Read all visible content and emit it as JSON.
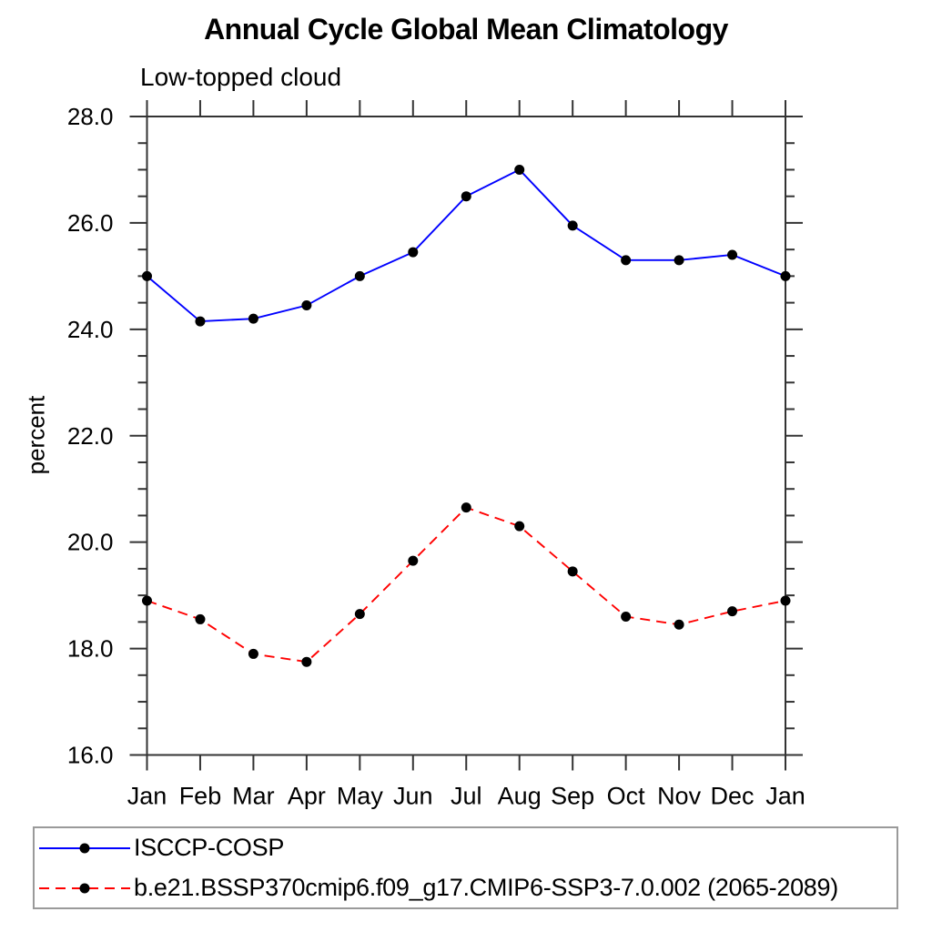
{
  "chart_data": {
    "type": "line",
    "title": "Annual Cycle Global Mean Climatology",
    "subtitle": "Low-topped cloud",
    "ylabel": "percent",
    "x_tick_labels": [
      "Jan",
      "Feb",
      "Mar",
      "Apr",
      "May",
      "Jun",
      "Jul",
      "Aug",
      "Sep",
      "Oct",
      "Nov",
      "Dec",
      "Jan"
    ],
    "ylim": [
      16.0,
      28.0
    ],
    "y_major_ticks": [
      16.0,
      18.0,
      20.0,
      22.0,
      24.0,
      26.0,
      28.0
    ],
    "y_tick_labels": [
      "16.0",
      "18.0",
      "20.0",
      "22.0",
      "24.0",
      "26.0",
      "28.0"
    ],
    "y_minor_step": 0.5,
    "grid": false,
    "legend_position": "bottom-left",
    "axis_color": "#333333",
    "marker": "filled-circle",
    "marker_color": "#000000",
    "series": [
      {
        "name": "ISCCP-COSP",
        "color": "#0000ff",
        "line_style": "solid",
        "values": [
          25.0,
          24.15,
          24.2,
          24.45,
          25.0,
          25.45,
          26.5,
          27.0,
          25.95,
          25.3,
          25.3,
          25.4,
          25.0
        ]
      },
      {
        "name": "b.e21.BSSP370cmip6.f09_g17.CMIP6-SSP3-7.0.002 (2065-2089)",
        "color": "#ff0000",
        "line_style": "dashed",
        "values": [
          18.9,
          18.55,
          17.9,
          17.75,
          18.65,
          19.65,
          20.65,
          20.3,
          19.45,
          18.6,
          18.45,
          18.7,
          18.9
        ]
      }
    ]
  }
}
